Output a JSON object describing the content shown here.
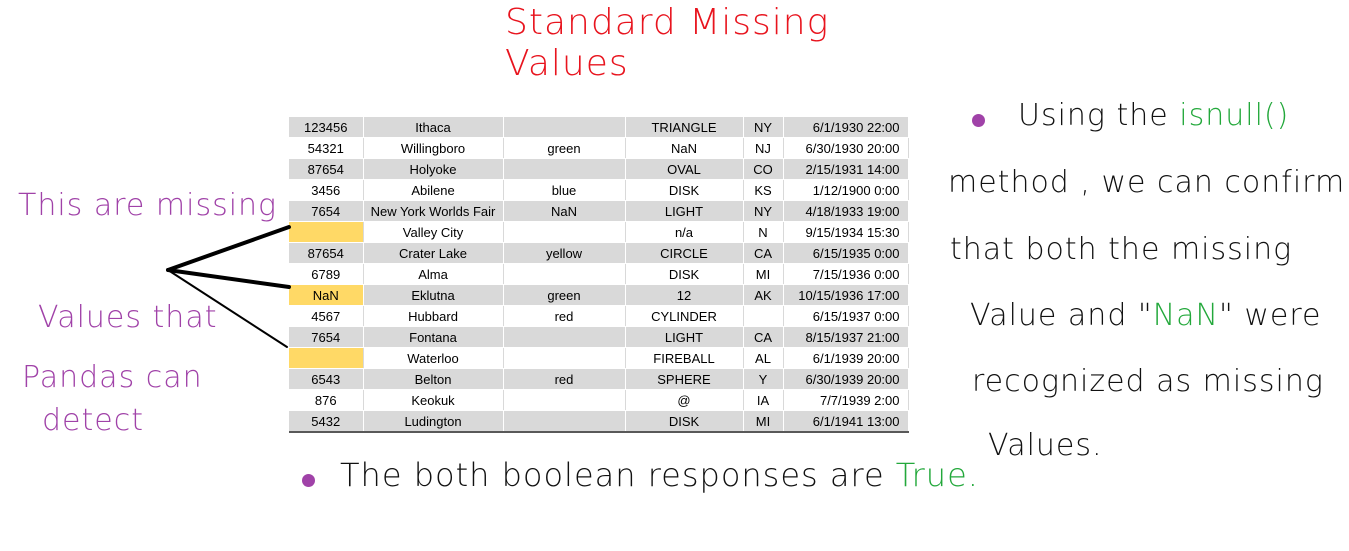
{
  "title": "Standard Missing Values",
  "table": {
    "rows": [
      [
        "123456",
        "Ithaca",
        "",
        "TRIANGLE",
        "NY",
        "6/1/1930 22:00"
      ],
      [
        "54321",
        "Willingboro",
        "green",
        "NaN",
        "NJ",
        "6/30/1930 20:00"
      ],
      [
        "87654",
        "Holyoke",
        "",
        "OVAL",
        "CO",
        "2/15/1931 14:00"
      ],
      [
        "3456",
        "Abilene",
        "blue",
        "DISK",
        "KS",
        "1/12/1900 0:00"
      ],
      [
        "7654",
        "New York Worlds Fair",
        "NaN",
        "LIGHT",
        "NY",
        "4/18/1933 19:00"
      ],
      [
        "",
        "Valley City",
        "",
        "n/a",
        "N",
        "9/15/1934 15:30"
      ],
      [
        "87654",
        "Crater Lake",
        "yellow",
        "CIRCLE",
        "CA",
        "6/15/1935 0:00"
      ],
      [
        "6789",
        "Alma",
        "",
        "DISK",
        "MI",
        "7/15/1936 0:00"
      ],
      [
        "NaN",
        "Eklutna",
        "green",
        "12",
        "AK",
        "10/15/1936 17:00"
      ],
      [
        "4567",
        "Hubbard",
        "red",
        "CYLINDER",
        "",
        "6/15/1937 0:00"
      ],
      [
        "7654",
        "Fontana",
        "",
        "LIGHT",
        "CA",
        "8/15/1937 21:00"
      ],
      [
        "",
        "Waterloo",
        "",
        "FIREBALL",
        "AL",
        "6/1/1939 20:00"
      ],
      [
        "6543",
        "Belton",
        "red",
        "SPHERE",
        "Y",
        "6/30/1939 20:00"
      ],
      [
        "876",
        "Keokuk",
        "",
        "@",
        "IA",
        "7/7/1939 2:00"
      ],
      [
        "5432",
        "Ludington",
        "",
        "DISK",
        "MI",
        "6/1/1941 13:00"
      ]
    ],
    "highlight_color": "#ffd966"
  },
  "left_note": {
    "line1": "This are missing",
    "line2": "Values that",
    "line3": "Pandas can",
    "line4": "detect",
    "color": "#a042a8"
  },
  "right_note": {
    "l1_a": "Using the ",
    "l1_b": "isnull()",
    "l2": "method , we can confirm",
    "l3": "that both the missing",
    "l4_a": "Value and \"",
    "l4_b": "NaN",
    "l4_c": "\" were",
    "l5": "recognized as missing",
    "l6": "Values."
  },
  "bottom_note": {
    "text_a": "The both boolean responses are ",
    "text_b": "True."
  },
  "colors": {
    "title": "#e8141e",
    "green": "#23a83b",
    "purple": "#a042a8",
    "row_shade": "#d9d9d9"
  }
}
